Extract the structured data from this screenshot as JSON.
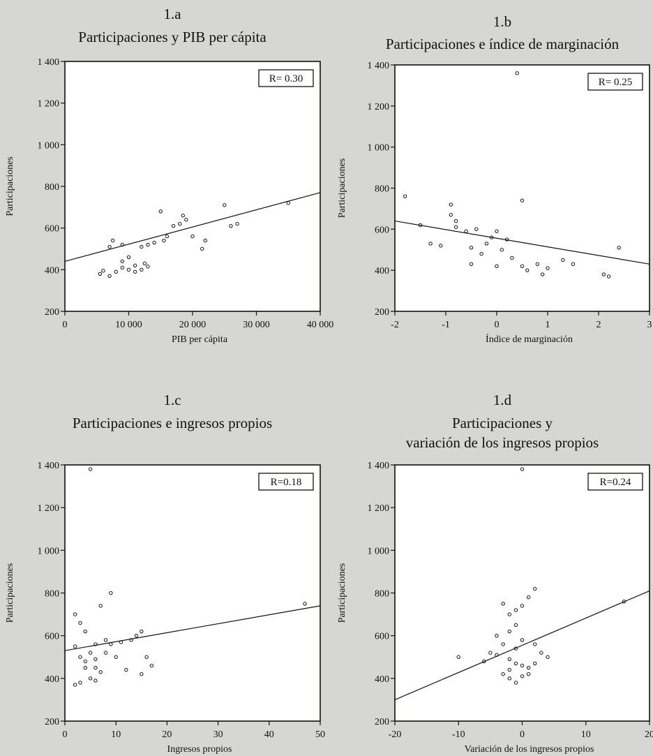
{
  "chart_data": [
    {
      "panel": "1.a",
      "type": "scatter",
      "title": "Participaciones y PIB per cápita",
      "xlabel": "PIB per cápita",
      "ylabel": "Participaciones",
      "xlim": [
        0,
        40000
      ],
      "ylim": [
        200,
        1400
      ],
      "xticks": [
        0,
        10000,
        20000,
        30000,
        40000
      ],
      "xtick_labels": [
        "0",
        "10 000",
        "20 000",
        "30 000",
        "40 000"
      ],
      "yticks": [
        200,
        400,
        600,
        800,
        1000,
        1200,
        1400
      ],
      "ytick_labels": [
        "200",
        "400",
        "600",
        "800",
        "1 000",
        "1 200",
        "1 400"
      ],
      "annotation": "R= 0.30",
      "fit_line": [
        [
          0,
          440
        ],
        [
          40000,
          770
        ]
      ],
      "points": [
        [
          8000,
          390
        ],
        [
          10000,
          400
        ],
        [
          9000,
          410
        ],
        [
          11000,
          420
        ],
        [
          12500,
          430
        ],
        [
          13000,
          415
        ],
        [
          6000,
          395
        ],
        [
          7000,
          510
        ],
        [
          7500,
          540
        ],
        [
          9000,
          520
        ],
        [
          9000,
          440
        ],
        [
          10000,
          460
        ],
        [
          12000,
          510
        ],
        [
          13000,
          520
        ],
        [
          14000,
          530
        ],
        [
          15500,
          540
        ],
        [
          16000,
          560
        ],
        [
          17000,
          610
        ],
        [
          18000,
          620
        ],
        [
          19000,
          640
        ],
        [
          20000,
          560
        ],
        [
          22000,
          540
        ],
        [
          21500,
          500
        ],
        [
          26000,
          610
        ],
        [
          27000,
          620
        ],
        [
          25000,
          710
        ],
        [
          15000,
          680
        ],
        [
          18500,
          660
        ],
        [
          35000,
          720
        ],
        [
          11000,
          390
        ],
        [
          12000,
          400
        ],
        [
          7000,
          370
        ],
        [
          5500,
          380
        ]
      ]
    },
    {
      "panel": "1.b",
      "type": "scatter",
      "title": "Participaciones e índice de marginación",
      "xlabel": "Índice de marginación",
      "ylabel": "Participaciones",
      "xlim": [
        -2,
        3
      ],
      "ylim": [
        200,
        1400
      ],
      "xticks": [
        -2,
        -1,
        0,
        1,
        2,
        3
      ],
      "xtick_labels": [
        "-2",
        "-1",
        "0",
        "1",
        "2",
        "3"
      ],
      "yticks": [
        200,
        400,
        600,
        800,
        1000,
        1200,
        1400
      ],
      "ytick_labels": [
        "200",
        "400",
        "600",
        "800",
        "1 000",
        "1 200",
        "1 400"
      ],
      "annotation": "R= 0.25",
      "fit_line": [
        [
          -2,
          640
        ],
        [
          3,
          430
        ]
      ],
      "points": [
        [
          0.4,
          1360
        ],
        [
          -1.8,
          760
        ],
        [
          -1.5,
          620
        ],
        [
          -1.3,
          530
        ],
        [
          -1.1,
          520
        ],
        [
          -0.9,
          670
        ],
        [
          -0.8,
          640
        ],
        [
          -0.8,
          610
        ],
        [
          -0.6,
          590
        ],
        [
          -0.5,
          510
        ],
        [
          -0.3,
          480
        ],
        [
          -0.2,
          530
        ],
        [
          -0.1,
          560
        ],
        [
          0.0,
          590
        ],
        [
          0.1,
          500
        ],
        [
          0.2,
          550
        ],
        [
          0.3,
          460
        ],
        [
          0.5,
          420
        ],
        [
          0.6,
          400
        ],
        [
          0.8,
          430
        ],
        [
          0.9,
          380
        ],
        [
          1.0,
          410
        ],
        [
          1.3,
          450
        ],
        [
          1.5,
          430
        ],
        [
          2.1,
          380
        ],
        [
          2.2,
          370
        ],
        [
          2.4,
          510
        ],
        [
          0.5,
          740
        ],
        [
          -0.9,
          720
        ],
        [
          -0.4,
          600
        ],
        [
          0.0,
          420
        ],
        [
          -0.5,
          430
        ]
      ]
    },
    {
      "panel": "1.c",
      "type": "scatter",
      "title": "Participaciones e ingresos propios",
      "xlabel": "Ingresos propios",
      "ylabel": "Participaciones",
      "xlim": [
        0,
        50
      ],
      "ylim": [
        200,
        1400
      ],
      "xticks": [
        0,
        10,
        20,
        30,
        40,
        50
      ],
      "xtick_labels": [
        "0",
        "10",
        "20",
        "30",
        "40",
        "50"
      ],
      "yticks": [
        200,
        400,
        600,
        800,
        1000,
        1200,
        1400
      ],
      "ytick_labels": [
        "200",
        "400",
        "600",
        "800",
        "1 000",
        "1 200",
        "1 400"
      ],
      "annotation": "R=0.18",
      "fit_line": [
        [
          0,
          530
        ],
        [
          50,
          740
        ]
      ],
      "points": [
        [
          5,
          1380
        ],
        [
          2,
          700
        ],
        [
          3,
          660
        ],
        [
          4,
          620
        ],
        [
          2,
          550
        ],
        [
          3,
          500
        ],
        [
          4,
          480
        ],
        [
          5,
          520
        ],
        [
          6,
          490
        ],
        [
          6,
          450
        ],
        [
          7,
          430
        ],
        [
          5,
          400
        ],
        [
          8,
          580
        ],
        [
          9,
          560
        ],
        [
          10,
          500
        ],
        [
          7,
          740
        ],
        [
          9,
          800
        ],
        [
          11,
          570
        ],
        [
          13,
          580
        ],
        [
          14,
          600
        ],
        [
          15,
          620
        ],
        [
          16,
          500
        ],
        [
          15,
          420
        ],
        [
          17,
          460
        ],
        [
          3,
          380
        ],
        [
          2,
          370
        ],
        [
          6,
          390
        ],
        [
          8,
          520
        ],
        [
          12,
          440
        ],
        [
          47,
          750
        ],
        [
          4,
          450
        ],
        [
          6,
          560
        ]
      ]
    },
    {
      "panel": "1.d",
      "type": "scatter",
      "title": "Participaciones y variación de los ingresos propios",
      "xlabel": "Variación de los ingresos propios",
      "ylabel": "Participaciones",
      "xlim": [
        -20,
        20
      ],
      "ylim": [
        200,
        1400
      ],
      "xticks": [
        -20,
        -10,
        0,
        10,
        20
      ],
      "xtick_labels": [
        "-20",
        "-10",
        "0",
        "10",
        "20"
      ],
      "yticks": [
        200,
        400,
        600,
        800,
        1000,
        1200,
        1400
      ],
      "ytick_labels": [
        "200",
        "400",
        "600",
        "800",
        "1 000",
        "1 200",
        "1 400"
      ],
      "annotation": "R=0.24",
      "fit_line": [
        [
          -20,
          300
        ],
        [
          20,
          810
        ]
      ],
      "points": [
        [
          0,
          1380
        ],
        [
          -1,
          720
        ],
        [
          -2,
          700
        ],
        [
          -3,
          750
        ],
        [
          0,
          740
        ],
        [
          1,
          780
        ],
        [
          -1,
          650
        ],
        [
          -2,
          620
        ],
        [
          0,
          580
        ],
        [
          -3,
          560
        ],
        [
          -4,
          510
        ],
        [
          -2,
          490
        ],
        [
          -1,
          470
        ],
        [
          0,
          460
        ],
        [
          1,
          450
        ],
        [
          -3,
          420
        ],
        [
          -2,
          400
        ],
        [
          -1,
          380
        ],
        [
          2,
          560
        ],
        [
          3,
          520
        ],
        [
          4,
          500
        ],
        [
          -4,
          600
        ],
        [
          -5,
          520
        ],
        [
          -6,
          480
        ],
        [
          -10,
          500
        ],
        [
          1,
          420
        ],
        [
          2,
          470
        ],
        [
          -1,
          540
        ],
        [
          16,
          760
        ],
        [
          2,
          820
        ],
        [
          -2,
          440
        ],
        [
          0,
          410
        ]
      ]
    }
  ]
}
